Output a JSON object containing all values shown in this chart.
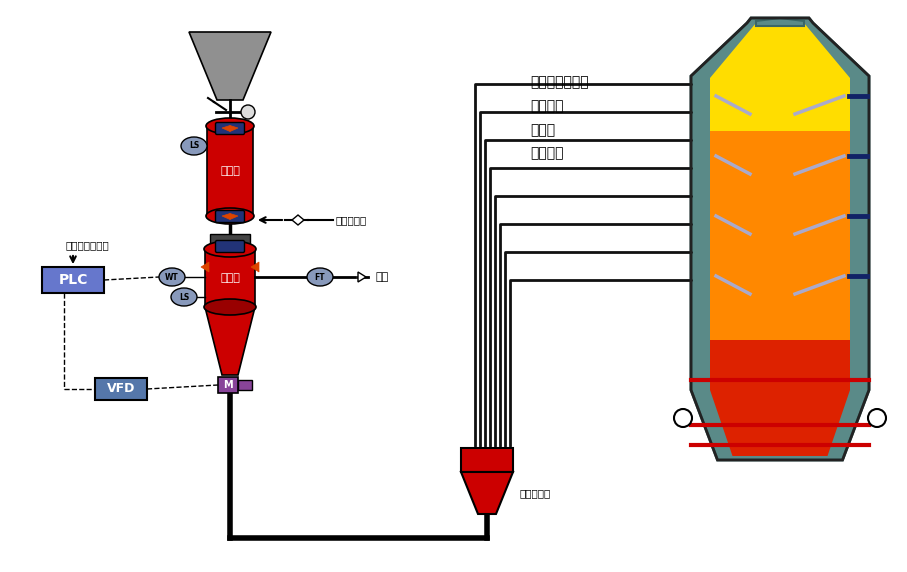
{
  "bg_color": "#ffffff",
  "red_color": "#cc0000",
  "dark_red": "#990000",
  "gray_color": "#909090",
  "purple_color": "#884499",
  "plc_color": "#6677cc",
  "sensor_color": "#8899bb",
  "orange_color": "#ff8800",
  "yellow_color": "#ffdd00",
  "teal_color": "#5a8a88",
  "labels": {
    "hopper_label": "收料罐",
    "tank_label": "喀吹罐",
    "flow_label": "流化加压气",
    "gas_label": "气源",
    "plc_label": "PLC",
    "vfd_label": "VFD",
    "m_label": "M",
    "feed_label": "给料量连续可调",
    "distributor_label": "管路分配器",
    "furnace_text": "循环流化床锅炉\n炼鐵高炉\n燔炼炉\n炼钓电炉"
  }
}
